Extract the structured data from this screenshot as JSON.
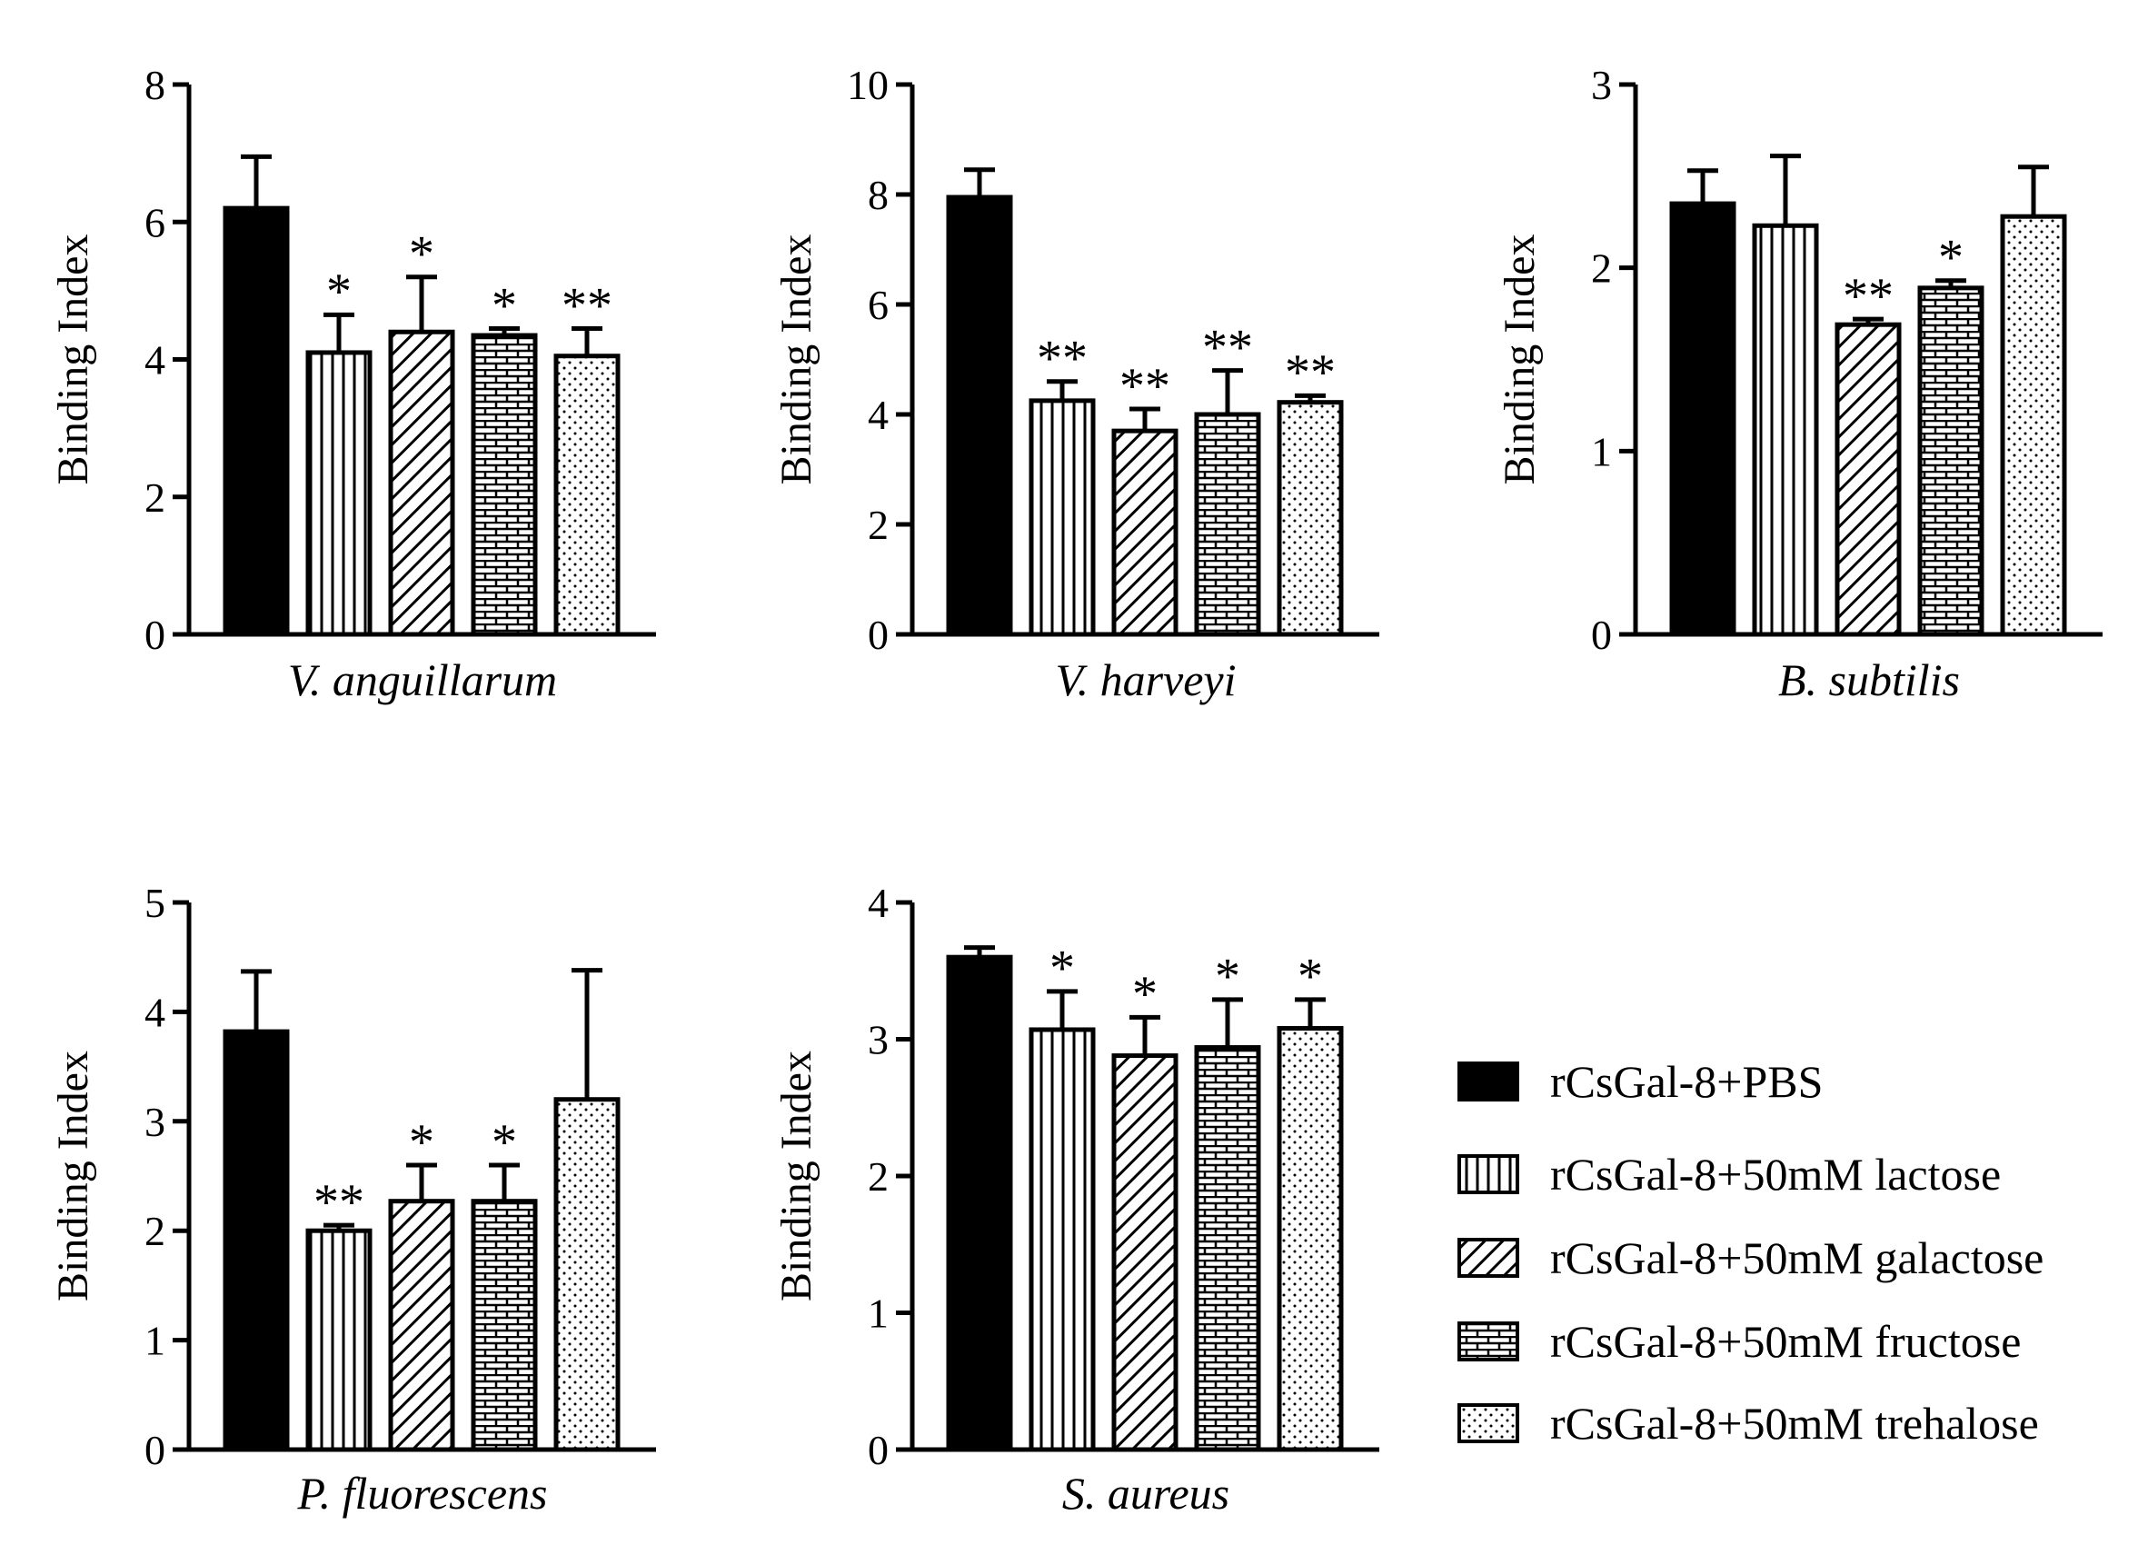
{
  "patterns": [
    {
      "id": "solid",
      "name": "solid-black-fill"
    },
    {
      "id": "vertical",
      "name": "vertical-lines"
    },
    {
      "id": "diagonal",
      "name": "diagonal-lines"
    },
    {
      "id": "brick",
      "name": "brick"
    },
    {
      "id": "dots",
      "name": "dots"
    }
  ],
  "colors": {
    "ink": "#000000",
    "paper": "#ffffff"
  },
  "legend": {
    "items": [
      {
        "label": "rCsGal-8+PBS",
        "pattern": "solid"
      },
      {
        "label": "rCsGal-8+50mM lactose",
        "pattern": "vertical"
      },
      {
        "label": "rCsGal-8+50mM galactose",
        "pattern": "diagonal"
      },
      {
        "label": "rCsGal-8+50mM fructose",
        "pattern": "brick"
      },
      {
        "label": "rCsGal-8+50mM trehalose",
        "pattern": "dots"
      }
    ]
  },
  "chart_data": [
    {
      "type": "bar",
      "title": "",
      "xlabel": "V. anguillarum",
      "ylabel": "Binding Index",
      "ylim": [
        0,
        8
      ],
      "yticks": [
        0,
        2,
        4,
        6,
        8
      ],
      "categories": [
        "rCsGal-8+PBS",
        "rCsGal-8+50mM lactose",
        "rCsGal-8+50mM galactose",
        "rCsGal-8+50mM fructose",
        "rCsGal-8+50mM trehalose"
      ],
      "values": [
        6.2,
        4.1,
        4.4,
        4.35,
        4.05
      ],
      "errors": [
        0.75,
        0.55,
        0.8,
        0.1,
        0.4
      ],
      "significance": [
        "",
        "*",
        "*",
        "*",
        "**"
      ]
    },
    {
      "type": "bar",
      "title": "",
      "xlabel": "V. harveyi",
      "ylabel": "Binding Index",
      "ylim": [
        0,
        10
      ],
      "yticks": [
        0,
        2,
        4,
        6,
        8,
        10
      ],
      "categories": [
        "rCsGal-8+PBS",
        "rCsGal-8+50mM lactose",
        "rCsGal-8+50mM galactose",
        "rCsGal-8+50mM fructose",
        "rCsGal-8+50mM trehalose"
      ],
      "values": [
        7.95,
        4.25,
        3.7,
        4.0,
        4.22
      ],
      "errors": [
        0.5,
        0.35,
        0.4,
        0.8,
        0.12
      ],
      "significance": [
        "",
        "**",
        "**",
        "**",
        "**"
      ]
    },
    {
      "type": "bar",
      "title": "",
      "xlabel": "B. subtilis",
      "ylabel": "Binding Index",
      "ylim": [
        0,
        3
      ],
      "yticks": [
        0,
        1,
        2,
        3
      ],
      "categories": [
        "rCsGal-8+PBS",
        "rCsGal-8+50mM lactose",
        "rCsGal-8+50mM galactose",
        "rCsGal-8+50mM fructose",
        "rCsGal-8+50mM trehalose"
      ],
      "values": [
        2.35,
        2.23,
        1.69,
        1.89,
        2.28
      ],
      "errors": [
        0.18,
        0.38,
        0.03,
        0.04,
        0.27
      ],
      "significance": [
        "",
        "",
        "**",
        "*",
        ""
      ]
    },
    {
      "type": "bar",
      "title": "",
      "xlabel": "P. fluorescens",
      "ylabel": "Binding Index",
      "ylim": [
        0,
        5
      ],
      "yticks": [
        0,
        1,
        2,
        3,
        4,
        5
      ],
      "categories": [
        "rCsGal-8+PBS",
        "rCsGal-8+50mM lactose",
        "rCsGal-8+50mM galactose",
        "rCsGal-8+50mM fructose",
        "rCsGal-8+50mM trehalose"
      ],
      "values": [
        3.82,
        2.0,
        2.27,
        2.27,
        3.2
      ],
      "errors": [
        0.55,
        0.05,
        0.33,
        0.33,
        1.18
      ],
      "significance": [
        "",
        "**",
        "*",
        "*",
        ""
      ]
    },
    {
      "type": "bar",
      "title": "",
      "xlabel": "S. aureus",
      "ylabel": "Binding Index",
      "ylim": [
        0,
        4
      ],
      "yticks": [
        0,
        1,
        2,
        3,
        4
      ],
      "categories": [
        "rCsGal-8+PBS",
        "rCsGal-8+50mM lactose",
        "rCsGal-8+50mM galactose",
        "rCsGal-8+50mM fructose",
        "rCsGal-8+50mM trehalose"
      ],
      "values": [
        3.6,
        3.07,
        2.88,
        2.94,
        3.08
      ],
      "errors": [
        0.07,
        0.28,
        0.28,
        0.35,
        0.21
      ],
      "significance": [
        "",
        "*",
        "*",
        "*",
        "*"
      ]
    }
  ]
}
